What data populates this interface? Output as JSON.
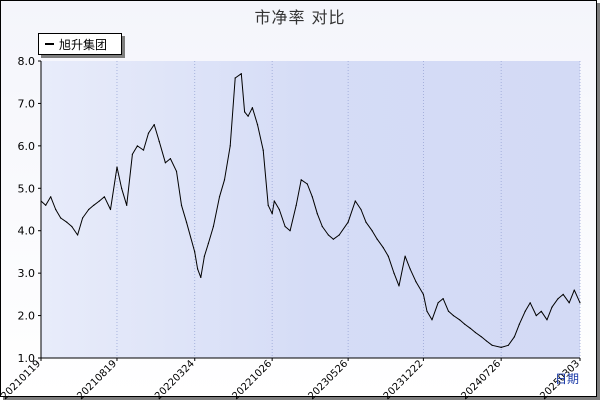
{
  "chart_data": {
    "type": "line",
    "title": "市净率  对比",
    "xlabel": "日期",
    "ylabel": "",
    "ylim": [
      1.0,
      8.0
    ],
    "yticks": [
      "1.0",
      "2.0",
      "3.0",
      "4.0",
      "5.0",
      "6.0",
      "7.0",
      "8.0"
    ],
    "xticks": [
      "20210119",
      "20210819",
      "20220324",
      "20221026",
      "20230526",
      "20231222",
      "20240726",
      "20250303"
    ],
    "legend": "top-left",
    "grid": false,
    "series": [
      {
        "name": "旭升集团",
        "color": "#000000",
        "x": [
          "20210119",
          "20210201",
          "20210215",
          "20210301",
          "20210315",
          "20210401",
          "20210415",
          "20210501",
          "20210515",
          "20210601",
          "20210615",
          "20210701",
          "20210715",
          "20210801",
          "20210819",
          "20210901",
          "20210915",
          "20211001",
          "20211015",
          "20211101",
          "20211115",
          "20211201",
          "20211215",
          "20220101",
          "20220115",
          "20220201",
          "20220215",
          "20220301",
          "20220324",
          "20220401",
          "20220410",
          "20220420",
          "20220501",
          "20220515",
          "20220601",
          "20220615",
          "20220701",
          "20220715",
          "20220801",
          "20220810",
          "20220820",
          "20220901",
          "20220915",
          "20221001",
          "20221015",
          "20221026",
          "20221101",
          "20221115",
          "20221201",
          "20221215",
          "20230101",
          "20230115",
          "20230201",
          "20230215",
          "20230301",
          "20230315",
          "20230401",
          "20230415",
          "20230501",
          "20230526",
          "20230615",
          "20230701",
          "20230715",
          "20230801",
          "20230815",
          "20230901",
          "20230915",
          "20231001",
          "20231015",
          "20231101",
          "20231115",
          "20231201",
          "20231222",
          "20240101",
          "20240115",
          "20240201",
          "20240215",
          "20240301",
          "20240315",
          "20240401",
          "20240415",
          "20240501",
          "20240515",
          "20240601",
          "20240615",
          "20240701",
          "20240726",
          "20240815",
          "20240901",
          "20240915",
          "20241001",
          "20241015",
          "20241101",
          "20241115",
          "20241201",
          "20241215",
          "20250101",
          "20250115",
          "20250201",
          "20250215",
          "20250303"
        ],
        "values": [
          4.7,
          4.6,
          4.8,
          4.5,
          4.3,
          4.2,
          4.1,
          3.9,
          4.3,
          4.5,
          4.6,
          4.7,
          4.8,
          4.5,
          5.5,
          5.0,
          4.6,
          5.8,
          6.0,
          5.9,
          6.3,
          6.5,
          6.1,
          5.6,
          5.7,
          5.4,
          4.6,
          4.2,
          3.5,
          3.1,
          2.9,
          3.4,
          3.7,
          4.1,
          4.8,
          5.2,
          6.0,
          7.6,
          7.7,
          6.8,
          6.7,
          6.9,
          6.5,
          5.9,
          4.6,
          4.4,
          4.7,
          4.5,
          4.1,
          4.0,
          4.6,
          5.2,
          5.1,
          4.8,
          4.4,
          4.1,
          3.9,
          3.8,
          3.9,
          4.2,
          4.7,
          4.5,
          4.2,
          4.0,
          3.8,
          3.6,
          3.4,
          3.0,
          2.7,
          3.4,
          3.1,
          2.8,
          2.5,
          2.1,
          1.9,
          2.3,
          2.4,
          2.1,
          2.0,
          1.9,
          1.8,
          1.7,
          1.6,
          1.5,
          1.4,
          1.3,
          1.25,
          1.3,
          1.5,
          1.8,
          2.1,
          2.3,
          2.0,
          2.1,
          1.9,
          2.2,
          2.4,
          2.5,
          2.3,
          2.6,
          2.3
        ]
      }
    ]
  }
}
